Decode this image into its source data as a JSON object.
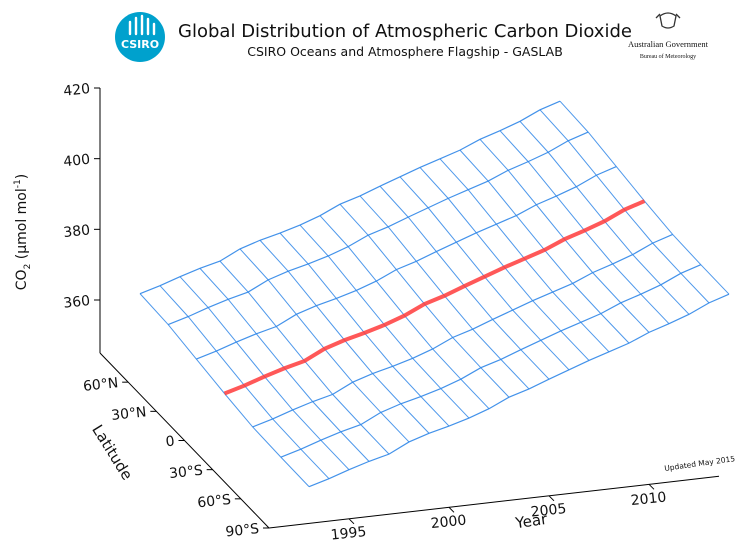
{
  "header": {
    "logo": "CSIRO",
    "agency": "Australian Government",
    "bureau": "Bureau of Meteorology"
  },
  "chart_data": {
    "type": "surface3d",
    "title": "Global Distribution of Atmospheric Carbon Dioxide",
    "subtitle": "CSIRO Oceans and Atmosphere Flagship - GASLAB",
    "zlabel": {
      "base": "CO",
      "sub": "2",
      "unit": " (µmol mol",
      "sup": "-1",
      "end": ")"
    },
    "ylabel": "Latitude",
    "xlabel": "Year",
    "annotation": "Updated May 2015",
    "x": [
      1993,
      1994,
      1995,
      1996,
      1997,
      1998,
      1999,
      2000,
      2001,
      2002,
      2003,
      2004,
      2005,
      2006,
      2007,
      2008,
      2009,
      2010,
      2011,
      2012,
      2013,
      2014
    ],
    "xlim": [
      1991,
      2015
    ],
    "xticks": [
      1995,
      2000,
      2005,
      2010
    ],
    "ylim": [
      -90,
      90
    ],
    "yticks": [
      {
        "value": 60,
        "label": "60°N"
      },
      {
        "value": 30,
        "label": "30°N"
      },
      0,
      {
        "value": -30,
        "label": "30°S"
      },
      {
        "value": -60,
        "label": "60°S"
      },
      {
        "value": -90,
        "label": "90°S"
      }
    ],
    "zlim": [
      345,
      420
    ],
    "zticks": [
      360,
      380,
      400,
      420
    ],
    "series": [
      {
        "lat": 90,
        "color": "#2f86e8",
        "values": [
          360.5,
          362.1,
          364.0,
          365.7,
          367.1,
          369.9,
          371.7,
          373.1,
          374.7,
          376.7,
          379.3,
          381.0,
          383.1,
          385.1,
          387.1,
          388.9,
          390.7,
          393.1,
          394.9,
          396.9,
          399.5,
          401.3
        ]
      },
      {
        "lat": 60,
        "color": "#2f86e8",
        "values": [
          360.0,
          361.6,
          363.5,
          365.2,
          366.6,
          369.4,
          371.2,
          372.6,
          374.2,
          376.2,
          378.8,
          380.5,
          382.6,
          384.6,
          386.6,
          388.4,
          390.2,
          392.6,
          394.4,
          396.4,
          399.0,
          400.8
        ]
      },
      {
        "lat": 30,
        "color": "#2f86e8",
        "values": [
          358.5,
          360.1,
          362.0,
          363.7,
          365.1,
          367.9,
          369.7,
          371.1,
          372.7,
          374.7,
          377.3,
          379.0,
          381.1,
          383.1,
          385.1,
          386.9,
          388.7,
          391.1,
          392.9,
          394.9,
          397.5,
          399.3
        ]
      },
      {
        "lat": 0,
        "color": "#ff3b3b",
        "values": [
          357.0,
          358.6,
          360.5,
          362.2,
          363.6,
          366.4,
          368.2,
          369.6,
          371.2,
          373.2,
          375.8,
          377.5,
          379.6,
          381.6,
          383.6,
          385.4,
          387.2,
          389.6,
          391.4,
          393.4,
          396.0,
          397.8
        ]
      },
      {
        "lat": -30,
        "color": "#2f86e8",
        "values": [
          355.8,
          357.4,
          359.3,
          361.0,
          362.4,
          365.2,
          367.0,
          368.4,
          370.0,
          372.0,
          374.6,
          376.3,
          378.4,
          380.4,
          382.4,
          384.2,
          386.0,
          388.4,
          390.2,
          392.2,
          394.8,
          396.6
        ]
      },
      {
        "lat": -60,
        "color": "#2f86e8",
        "values": [
          355.5,
          357.1,
          359.0,
          360.7,
          362.1,
          364.9,
          366.7,
          368.1,
          369.7,
          371.7,
          374.3,
          376.0,
          378.1,
          380.1,
          382.1,
          383.9,
          385.7,
          388.1,
          389.9,
          391.9,
          394.5,
          396.3
        ]
      },
      {
        "lat": -90,
        "color": "#2f86e8",
        "values": [
          355.4,
          357.0,
          358.9,
          360.6,
          362.0,
          364.8,
          366.6,
          368.0,
          369.6,
          371.6,
          374.2,
          375.9,
          378.0,
          380.0,
          382.0,
          383.8,
          385.6,
          388.0,
          389.8,
          391.8,
          394.4,
          396.2
        ]
      }
    ]
  }
}
